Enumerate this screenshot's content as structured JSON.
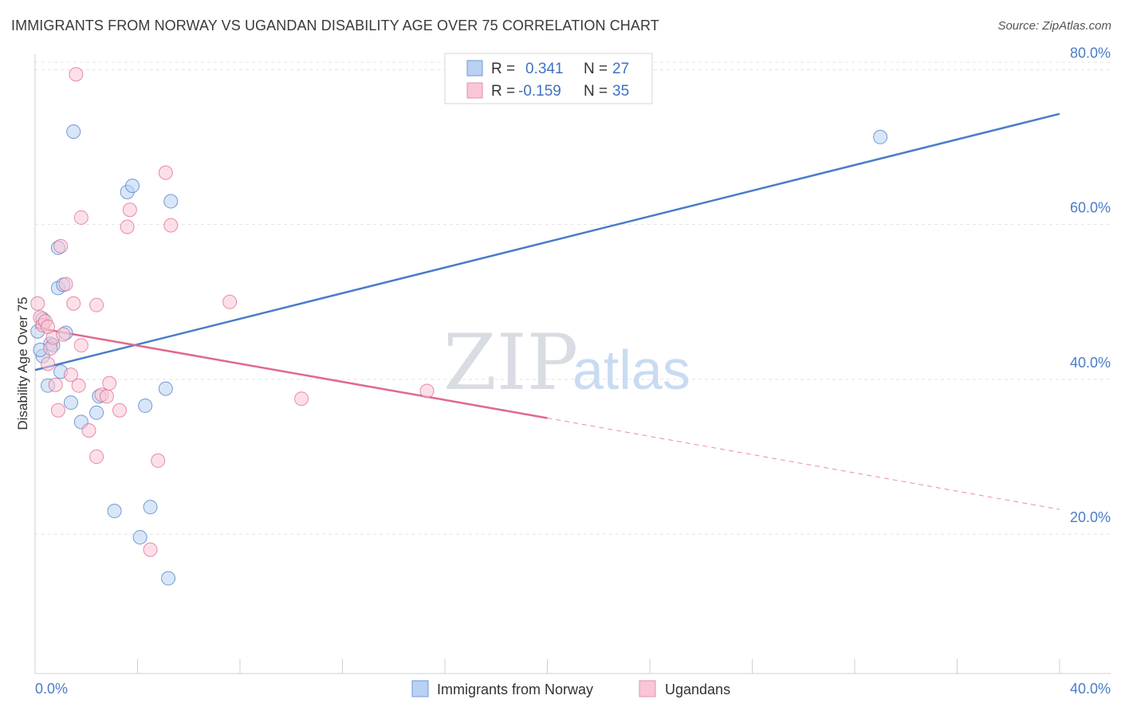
{
  "title": "IMMIGRANTS FROM NORWAY VS UGANDAN DISABILITY AGE OVER 75 CORRELATION CHART",
  "source": "Source: ZipAtlas.com",
  "watermark": {
    "zip": "ZIP",
    "atlas": "atlas"
  },
  "chart_data": {
    "type": "scatter",
    "ylabel": "Disability Age Over 75",
    "xlim": [
      0,
      40
    ],
    "ylim": [
      2,
      82
    ],
    "x_tick_values": [
      0,
      4,
      8,
      12,
      16,
      20,
      24,
      28,
      32,
      36,
      40
    ],
    "x_tick_labels": [
      {
        "value": 0,
        "label": "0.0%"
      },
      {
        "value": 40,
        "label": "40.0%"
      }
    ],
    "y_ticks": [
      {
        "value": 20,
        "label": "20.0%"
      },
      {
        "value": 40,
        "label": "40.0%"
      },
      {
        "value": 60,
        "label": "60.0%"
      },
      {
        "value": 80,
        "label": "80.0%"
      }
    ],
    "stats": [
      {
        "r_label": "R =",
        "r": "0.341",
        "n_label": "N =",
        "n": "27"
      },
      {
        "r_label": "R =",
        "r": "-0.159",
        "n_label": "N =",
        "n": "35"
      }
    ],
    "series": [
      {
        "name": "Immigrants from Norway",
        "color": "#4a7cc9",
        "fill": "#b9d1f3",
        "points": [
          [
            0.1,
            46.2
          ],
          [
            0.3,
            47.8
          ],
          [
            0.3,
            43.0
          ],
          [
            0.5,
            39.2
          ],
          [
            0.6,
            44.6
          ],
          [
            0.7,
            44.4
          ],
          [
            0.9,
            51.8
          ],
          [
            0.9,
            57.0
          ],
          [
            1.0,
            41.0
          ],
          [
            1.1,
            52.2
          ],
          [
            1.2,
            46.0
          ],
          [
            1.4,
            37.0
          ],
          [
            1.5,
            72.0
          ],
          [
            1.8,
            34.5
          ],
          [
            2.4,
            35.7
          ],
          [
            2.5,
            37.8
          ],
          [
            3.1,
            23.0
          ],
          [
            3.6,
            64.2
          ],
          [
            3.8,
            65.0
          ],
          [
            4.1,
            19.6
          ],
          [
            4.3,
            36.6
          ],
          [
            4.5,
            23.5
          ],
          [
            5.1,
            38.8
          ],
          [
            5.2,
            14.3
          ],
          [
            5.3,
            63.0
          ],
          [
            33.0,
            71.3
          ],
          [
            0.2,
            43.8
          ]
        ]
      },
      {
        "name": "Ugandans",
        "color": "#e0688e",
        "fill": "#f9c6d5",
        "points": [
          [
            0.1,
            49.8
          ],
          [
            0.2,
            48.0
          ],
          [
            0.3,
            47.0
          ],
          [
            0.4,
            47.5
          ],
          [
            0.5,
            42.0
          ],
          [
            0.6,
            44.0
          ],
          [
            0.7,
            45.4
          ],
          [
            0.8,
            39.3
          ],
          [
            0.9,
            36.0
          ],
          [
            1.0,
            57.2
          ],
          [
            1.1,
            45.8
          ],
          [
            1.2,
            52.3
          ],
          [
            1.4,
            40.6
          ],
          [
            1.5,
            49.8
          ],
          [
            1.6,
            79.4
          ],
          [
            1.7,
            39.2
          ],
          [
            1.8,
            60.9
          ],
          [
            1.8,
            44.4
          ],
          [
            2.1,
            33.4
          ],
          [
            2.4,
            30.0
          ],
          [
            2.4,
            49.6
          ],
          [
            2.6,
            38.0
          ],
          [
            2.8,
            37.8
          ],
          [
            2.9,
            39.5
          ],
          [
            3.3,
            36.0
          ],
          [
            3.6,
            59.7
          ],
          [
            3.7,
            61.9
          ],
          [
            4.5,
            18.0
          ],
          [
            4.8,
            29.5
          ],
          [
            5.1,
            66.7
          ],
          [
            5.3,
            59.9
          ],
          [
            7.6,
            50.0
          ],
          [
            10.4,
            37.5
          ],
          [
            15.3,
            38.5
          ],
          [
            0.5,
            46.8
          ]
        ]
      }
    ],
    "trendlines": [
      {
        "series": "Immigrants from Norway",
        "x0": 0,
        "y0": 41.2,
        "x1": 40,
        "y1": 74.3,
        "style": "solid"
      },
      {
        "series": "Ugandans",
        "x0": 0,
        "y0": 46.7,
        "x1": 20,
        "y1": 35.0,
        "style": "solid"
      },
      {
        "series": "Ugandans",
        "x0": 20,
        "y0": 35.0,
        "x1": 40,
        "y1": 23.2,
        "style": "dashed"
      }
    ]
  }
}
